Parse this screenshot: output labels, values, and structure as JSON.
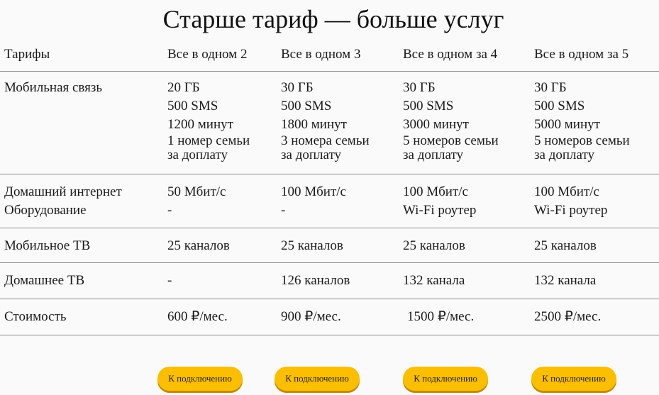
{
  "title": "Старше тариф — больше услуг",
  "header": {
    "label": "Тарифы",
    "plans": [
      "Все в одном 2",
      "Все в одном 3",
      "Все в одном за 4",
      "Все в одном за 5"
    ]
  },
  "rows": {
    "mobile": {
      "label": "Мобильная связь",
      "cells": [
        {
          "gb": "20 ГБ",
          "sms": "500 SMS",
          "min": "1200 минут",
          "fam1": "1 номер семьи",
          "fam2": "за доплату"
        },
        {
          "gb": "30 ГБ",
          "sms": "500 SMS",
          "min": "1800 минут",
          "fam1": "3 номера семьи",
          "fam2": "за доплату"
        },
        {
          "gb": "30 ГБ",
          "sms": "500 SMS",
          "min": "3000 минут",
          "fam1": "5 номеров семьи",
          "fam2": "за доплату"
        },
        {
          "gb": "30 ГБ",
          "sms": "500 SMS",
          "min": "5000 минут",
          "fam1": "5 номеров семьи",
          "fam2": "за доплату"
        }
      ]
    },
    "internet": {
      "label": "Домашний интернет",
      "label2": "Оборудование",
      "cells": [
        {
          "speed": "50 Мбит/с",
          "equip": "-"
        },
        {
          "speed": "100 Мбит/с",
          "equip": "-"
        },
        {
          "speed": "100 Мбит/с",
          "equip": "Wi-Fi роутер"
        },
        {
          "speed": "100 Мбит/с",
          "equip": "Wi-Fi роутер"
        }
      ]
    },
    "mobile_tv": {
      "label": "Мобильное ТВ",
      "cells": [
        "25 каналов",
        "25 каналов",
        "25 каналов",
        "25 каналов"
      ]
    },
    "home_tv": {
      "label": "Домашнее ТВ",
      "cells": [
        "-",
        "126 каналов",
        "132 канала",
        "132 канала"
      ]
    },
    "price": {
      "label": "Стоимость",
      "cells": [
        "600 ₽/мес.",
        "900 ₽/мес.",
        "1500 ₽/мес.",
        "2500 ₽/мес."
      ]
    }
  },
  "button_label": "К подключению",
  "colors": {
    "button": "#fcbf00",
    "divider": "#8a8a8a"
  }
}
